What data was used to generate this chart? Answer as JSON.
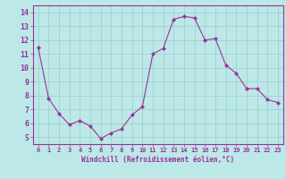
{
  "x": [
    0,
    1,
    2,
    3,
    4,
    5,
    6,
    7,
    8,
    9,
    10,
    11,
    12,
    13,
    14,
    15,
    16,
    17,
    18,
    19,
    20,
    21,
    22,
    23
  ],
  "y": [
    11.5,
    7.8,
    6.7,
    5.9,
    6.2,
    5.8,
    4.9,
    5.3,
    5.6,
    6.6,
    7.2,
    11.0,
    11.4,
    13.5,
    13.7,
    13.6,
    12.0,
    12.1,
    10.2,
    9.6,
    8.5,
    8.5,
    7.7,
    7.5
  ],
  "line_color": "#993399",
  "marker": "D",
  "marker_size": 2.0,
  "bg_color": "#bde8e8",
  "grid_color": "#99cccc",
  "xlabel": "Windchill (Refroidissement éolien,°C)",
  "xlabel_color": "#993399",
  "tick_color": "#993399",
  "axis_color": "#993399",
  "ylim": [
    4.5,
    14.5
  ],
  "xlim": [
    -0.5,
    23.5
  ],
  "yticks": [
    5,
    6,
    7,
    8,
    9,
    10,
    11,
    12,
    13,
    14
  ],
  "xticks": [
    0,
    1,
    2,
    3,
    4,
    5,
    6,
    7,
    8,
    9,
    10,
    11,
    12,
    13,
    14,
    15,
    16,
    17,
    18,
    19,
    20,
    21,
    22,
    23
  ]
}
